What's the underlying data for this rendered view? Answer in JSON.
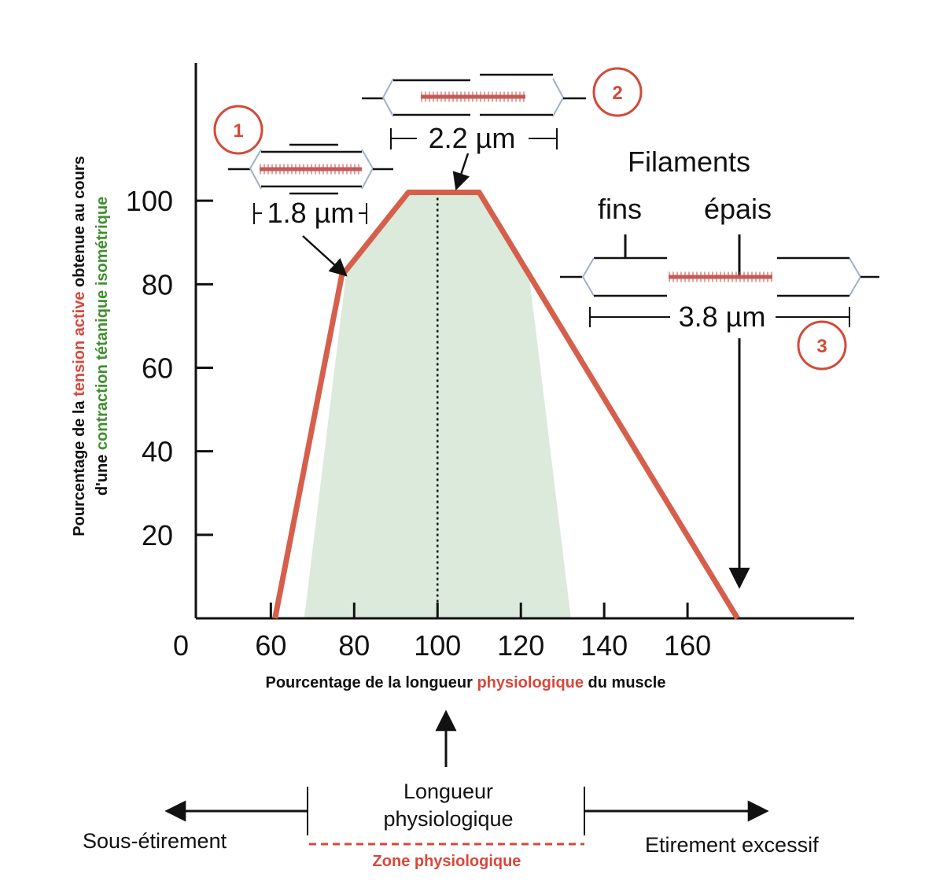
{
  "chart_data": {
    "type": "line",
    "ylabel_parts": [
      {
        "text": "Pourcentage de la ",
        "color": "#111111"
      },
      {
        "text": "tension active",
        "color": "#d9473a"
      },
      {
        "text": " obtenue au cours",
        "color": "#111111"
      }
    ],
    "ylabel_parts2": [
      {
        "text": "d'une ",
        "color": "#111111"
      },
      {
        "text": "contraction tétanique isométrique",
        "color": "#3f8f2f"
      }
    ],
    "xlabel_parts": [
      {
        "text": "Pourcentage de la longueur ",
        "color": "#111111"
      },
      {
        "text": "physiologique",
        "color": "#d9473a"
      },
      {
        "text": " du muscle",
        "color": "#111111"
      }
    ],
    "origin_label": "0",
    "x_ticks": [
      60,
      80,
      100,
      120,
      140,
      160
    ],
    "y_ticks": [
      20,
      40,
      60,
      80,
      100
    ],
    "xlim": [
      42,
      200
    ],
    "ylim": [
      0,
      133
    ],
    "series": [
      {
        "color": "#d65f4c",
        "points": [
          [
            61,
            0
          ],
          [
            77,
            82
          ],
          [
            93,
            102
          ],
          [
            110,
            102
          ],
          [
            172,
            0
          ]
        ]
      }
    ],
    "shaded_region": {
      "color": "#dceadb",
      "points": [
        [
          68,
          0
        ],
        [
          78,
          82
        ],
        [
          93,
          102
        ],
        [
          110,
          102
        ],
        [
          122,
          82
        ],
        [
          132,
          0
        ]
      ]
    },
    "reference_line_x": 100,
    "annotations": [
      {
        "number": "1",
        "length": "1.8 µm"
      },
      {
        "number": "2",
        "length": "2.2 µm"
      },
      {
        "number": "3",
        "length": "3.8 µm"
      }
    ],
    "filaments_title": "Filaments",
    "filament_thin": "fins",
    "filament_thick": "épais"
  },
  "bottom": {
    "left_label": "Sous-étirement",
    "center_label_line1": "Longueur",
    "center_label_line2": "physiologique",
    "right_label": "Etirement excessif",
    "zone_label": "Zone physiologique",
    "zone_color": "#d9473a"
  }
}
